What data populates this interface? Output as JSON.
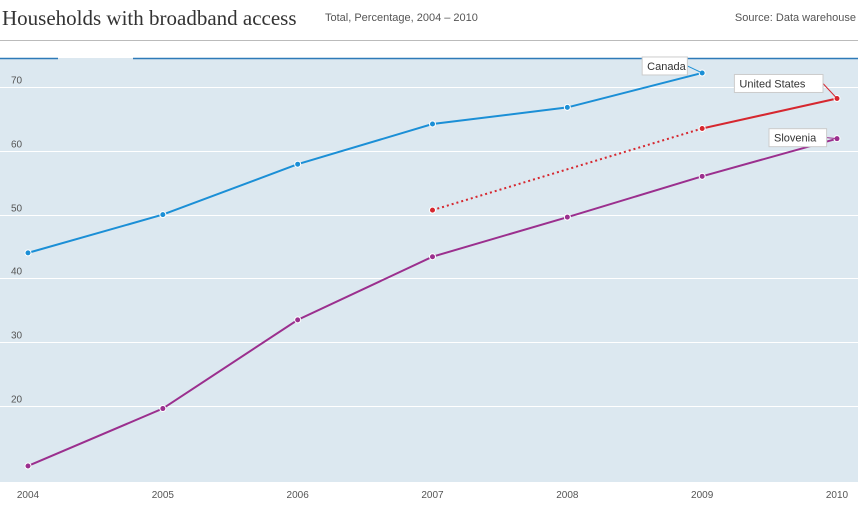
{
  "header": {
    "title": "Households with broadband access",
    "subtitle": "Total, Percentage, 2004 – 2010",
    "source": "Source: Data warehouse"
  },
  "colors": {
    "background": "#dce8f0",
    "grid": "#ffffff",
    "accent_line": "#2e7ab8"
  },
  "chart_data": {
    "type": "line",
    "title": "Households with broadband access",
    "subtitle": "Total, Percentage, 2004 – 2010",
    "x": [
      2004,
      2005,
      2006,
      2007,
      2008,
      2009,
      2010
    ],
    "x_tick_labels": [
      "2004",
      "2005",
      "2006",
      "2007",
      "2008",
      "2009",
      "2010"
    ],
    "y_ticks": [
      20,
      30,
      40,
      50,
      60,
      70
    ],
    "y_tick_labels": [
      "20",
      "30",
      "40",
      "50",
      "60",
      "70"
    ],
    "xlim": [
      2004,
      2010
    ],
    "ylim": [
      10,
      75
    ],
    "grid": true,
    "series": [
      {
        "name": "Canada",
        "color": "#1b8fd6",
        "style": "solid",
        "points": [
          [
            2004,
            44.0
          ],
          [
            2005,
            50.0
          ],
          [
            2006,
            57.9
          ],
          [
            2007,
            64.2
          ],
          [
            2008,
            66.8
          ],
          [
            2009,
            72.2
          ]
        ]
      },
      {
        "name": "United States",
        "color": "#d6272f",
        "style": "dotted-then-solid",
        "points": [
          [
            2007,
            50.7
          ],
          [
            2009,
            63.5
          ],
          [
            2010,
            68.2
          ]
        ],
        "dotted_until": 2009
      },
      {
        "name": "Slovenia",
        "color": "#9b2f8e",
        "style": "solid",
        "points": [
          [
            2004,
            10.6
          ],
          [
            2005,
            19.6
          ],
          [
            2006,
            33.5
          ],
          [
            2007,
            43.4
          ],
          [
            2008,
            49.6
          ],
          [
            2009,
            56.0
          ],
          [
            2010,
            61.9
          ]
        ]
      }
    ]
  }
}
